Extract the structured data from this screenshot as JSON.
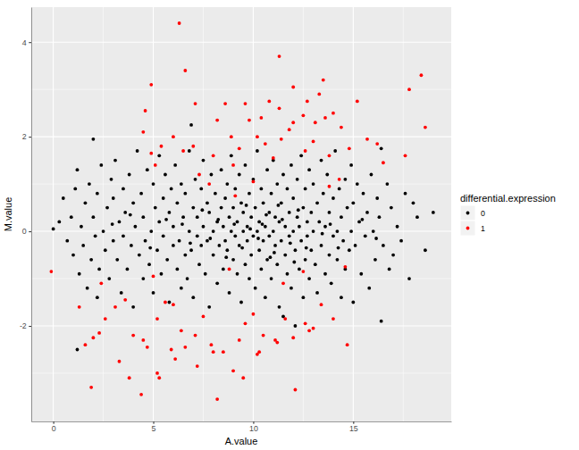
{
  "chart_data": {
    "type": "scatter",
    "x_label": "A.value",
    "y_label": "M.value",
    "legend_title": "differential.expression",
    "legend": "right",
    "grid": true,
    "marker": "circle",
    "xlim": [
      -1.1,
      19.9
    ],
    "ylim": [
      -4.02,
      4.74
    ],
    "xticks": [
      0,
      5,
      10,
      15
    ],
    "yticks": [
      -2,
      0,
      2,
      4
    ],
    "series": [
      {
        "name": "0",
        "color": "#000000",
        "x": [
          0.0,
          0.3,
          0.5,
          0.7,
          0.9,
          1.0,
          1.1,
          1.2,
          1.2,
          1.3,
          1.4,
          1.5,
          1.6,
          1.7,
          1.8,
          1.9,
          2.0,
          2.0,
          2.1,
          2.2,
          2.2,
          2.3,
          2.4,
          2.5,
          2.6,
          2.7,
          2.8,
          2.9,
          3.0,
          3.0,
          3.1,
          3.2,
          3.3,
          3.4,
          3.5,
          3.5,
          3.6,
          3.7,
          3.8,
          3.9,
          4.0,
          4.0,
          4.1,
          4.2,
          4.3,
          4.4,
          4.5,
          4.5,
          4.6,
          4.7,
          4.8,
          4.9,
          5.0,
          5.0,
          5.1,
          5.2,
          5.3,
          5.3,
          5.4,
          5.5,
          5.5,
          5.6,
          5.7,
          5.8,
          5.8,
          5.9,
          6.0,
          6.0,
          6.1,
          6.2,
          6.2,
          6.3,
          6.4,
          6.4,
          6.5,
          6.6,
          6.6,
          6.7,
          6.8,
          6.8,
          6.9,
          6.9,
          7.0,
          7.0,
          7.1,
          7.2,
          7.2,
          7.3,
          7.4,
          7.4,
          7.5,
          7.5,
          7.6,
          7.7,
          7.7,
          7.8,
          7.8,
          7.9,
          8.0,
          8.0,
          8.1,
          8.2,
          8.2,
          8.3,
          8.4,
          8.4,
          8.5,
          8.5,
          8.6,
          8.6,
          8.7,
          8.7,
          8.8,
          8.8,
          8.9,
          8.9,
          9.0,
          9.0,
          9.1,
          9.1,
          9.2,
          9.2,
          9.3,
          9.3,
          9.4,
          9.4,
          9.5,
          9.5,
          9.6,
          9.6,
          9.7,
          9.7,
          9.8,
          9.8,
          9.9,
          9.9,
          10.0,
          10.0,
          10.1,
          10.1,
          10.2,
          10.2,
          10.3,
          10.3,
          10.4,
          10.4,
          10.5,
          10.5,
          10.6,
          10.6,
          10.7,
          10.7,
          10.8,
          10.8,
          10.9,
          10.9,
          11.0,
          11.0,
          11.1,
          11.1,
          11.2,
          11.2,
          11.3,
          11.3,
          11.4,
          11.4,
          11.5,
          11.5,
          11.6,
          11.6,
          11.7,
          11.7,
          11.8,
          11.8,
          11.9,
          11.9,
          12.0,
          12.0,
          12.1,
          12.1,
          12.2,
          12.2,
          12.3,
          12.3,
          12.4,
          12.4,
          12.5,
          12.5,
          12.6,
          12.6,
          12.7,
          12.7,
          12.8,
          12.8,
          12.9,
          12.9,
          13.0,
          13.0,
          13.1,
          13.2,
          13.2,
          13.3,
          13.4,
          13.4,
          13.5,
          13.6,
          13.6,
          13.7,
          13.8,
          13.8,
          13.9,
          14.0,
          14.0,
          14.1,
          14.2,
          14.2,
          14.3,
          14.4,
          14.4,
          14.5,
          14.6,
          14.6,
          14.7,
          14.8,
          14.9,
          14.9,
          15.0,
          15.0,
          15.1,
          15.2,
          15.3,
          15.4,
          15.5,
          15.6,
          15.7,
          15.8,
          15.9,
          16.0,
          16.1,
          16.2,
          16.3,
          16.4,
          16.4,
          16.5,
          16.7,
          16.8,
          16.9,
          17.0,
          17.2,
          17.4,
          17.6,
          17.8,
          18.2,
          18.6,
          19.0,
          18.0,
          9.05,
          9.45,
          9.85,
          10.25,
          10.65,
          11.05,
          11.45,
          11.85,
          12.25,
          8.25,
          7.85,
          7.45,
          6.85,
          6.45,
          5.65,
          4.85,
          13.45,
          13.85,
          14.25,
          10.45,
          9.65,
          10.85,
          11.25,
          8.65,
          12.65,
          3.85,
          2.95,
          15.45,
          16.15,
          12.05
        ],
        "values": [
          0.05,
          0.2,
          0.7,
          -0.2,
          0.3,
          -0.5,
          0.9,
          1.3,
          -2.5,
          -0.9,
          0.1,
          -0.3,
          0.6,
          -1.2,
          1.0,
          -0.6,
          1.95,
          0.3,
          -0.1,
          -1.4,
          0.8,
          -0.8,
          1.4,
          0.0,
          -0.4,
          0.5,
          -1.0,
          1.1,
          -0.2,
          0.7,
          1.5,
          -0.6,
          0.2,
          -1.3,
          0.9,
          -0.1,
          0.4,
          -0.8,
          1.2,
          -0.3,
          0.6,
          -1.6,
          0.1,
          1.7,
          -0.5,
          0.8,
          -1.0,
          0.3,
          -0.2,
          1.3,
          -0.7,
          0.0,
          1.0,
          -1.3,
          0.5,
          -0.4,
          1.6,
          0.2,
          -0.9,
          0.7,
          -0.1,
          1.2,
          -0.6,
          0.4,
          -1.5,
          0.9,
          -0.3,
          0.1,
          1.4,
          -0.8,
          0.6,
          -0.2,
          1.0,
          -1.2,
          0.3,
          -0.5,
          0.8,
          -1.0,
          0.0,
          1.7,
          2.25,
          -0.4,
          0.5,
          -1.4,
          1.1,
          -0.1,
          0.3,
          -0.7,
          0.9,
          -0.3,
          1.5,
          0.1,
          -0.9,
          0.6,
          -0.2,
          -1.6,
          0.4,
          1.2,
          -0.5,
          0.0,
          0.8,
          -1.1,
          0.2,
          -0.3,
          1.3,
          0.5,
          -0.8,
          0.1,
          -0.2,
          0.7,
          1.0,
          -0.4,
          0.3,
          -1.3,
          0.0,
          1.6,
          -0.6,
          0.5,
          -0.1,
          0.9,
          -0.9,
          0.2,
          1.2,
          -0.3,
          0.6,
          -1.5,
          0.0,
          0.4,
          -0.7,
          1.4,
          0.1,
          -0.2,
          0.8,
          -1.0,
          0.3,
          -0.5,
          1.1,
          -0.1,
          0.5,
          -1.2,
          0.0,
          1.7,
          -0.4,
          0.2,
          0.9,
          -0.8,
          -0.2,
          0.6,
          -1.4,
          0.1,
          1.3,
          -0.6,
          0.4,
          -0.1,
          0.8,
          -1.0,
          0.0,
          1.5,
          -0.3,
          0.3,
          -0.7,
          1.0,
          0.2,
          -1.6,
          -0.2,
          0.6,
          -1.8,
          1.2,
          -0.5,
          0.1,
          0.9,
          -0.9,
          -0.1,
          0.4,
          1.4,
          -1.2,
          0.0,
          0.7,
          -2.0,
          -0.4,
          0.3,
          1.1,
          -0.8,
          0.1,
          -0.2,
          1.6,
          0.5,
          -1.4,
          -0.6,
          0.9,
          0.2,
          -0.1,
          1.3,
          -1.0,
          0.4,
          -0.4,
          0.0,
          1.0,
          -0.7,
          0.6,
          -1.3,
          0.2,
          1.5,
          -0.3,
          0.8,
          -0.9,
          0.1,
          1.2,
          -0.5,
          0.4,
          -1.1,
          0.7,
          -0.1,
          1.7,
          0.0,
          -0.6,
          0.9,
          -1.4,
          0.3,
          -0.2,
          1.1,
          -0.8,
          0.5,
          -0.4,
          1.4,
          0.0,
          -1.5,
          0.6,
          -0.3,
          1.0,
          0.2,
          -0.9,
          0.8,
          -0.1,
          0.4,
          -1.2,
          1.2,
          0.0,
          -0.6,
          0.7,
          0.3,
          1.75,
          -1.9,
          -0.3,
          1.0,
          -0.8,
          0.5,
          -0.5,
          0.1,
          -0.2,
          0.8,
          -1.0,
          0.3,
          -0.4,
          0.4,
          0.6,
          0.15,
          -0.35,
          0.05,
          -0.15,
          0.35,
          -0.45,
          0.25,
          -0.25,
          0.45,
          0.25,
          -0.15,
          0.45,
          -0.25,
          0.15,
          0.25,
          -0.35,
          -0.05,
          0.15,
          -0.35,
          0.15,
          0.55,
          -0.55,
          0.55,
          -0.55,
          -0.35,
          0.35,
          0.15,
          0.25,
          -0.15,
          -0.65
        ]
      },
      {
        "name": "1",
        "color": "#FF0000",
        "x": [
          6.3,
          11.3,
          6.6,
          4.9,
          18.4,
          13.5,
          17.8,
          12.0,
          13.3,
          7.1,
          8.6,
          10.8,
          9.6,
          12.7,
          15.2,
          4.6,
          14.0,
          12.5,
          18.6,
          11.3,
          10.4,
          9.8,
          8.2,
          13.1,
          12.0,
          13.6,
          4.5,
          11.8,
          14.4,
          15.7,
          6.0,
          8.9,
          10.2,
          11.4,
          13.0,
          16.2,
          5.4,
          7.0,
          9.3,
          14.8,
          4.9,
          8.0,
          17.6,
          12.6,
          10.6,
          6.5,
          11.0,
          13.8,
          5.1,
          16.5,
          9.0,
          7.8,
          10.0,
          13.8,
          9.1,
          14.3,
          7.3,
          -0.1,
          5.0,
          8.8,
          12.5,
          14.6,
          2.4,
          11.5,
          1.3,
          2.6,
          2.0,
          3.1,
          3.6,
          2.3,
          4.0,
          4.5,
          5.2,
          5.6,
          6.0,
          6.4,
          7.1,
          6.6,
          7.5,
          7.9,
          8.5,
          9.3,
          9.6,
          10.0,
          10.5,
          11.2,
          11.6,
          12.0,
          12.6,
          13.0,
          13.4,
          14.0,
          14.7,
          3.3,
          1.9,
          3.8,
          4.4,
          5.2,
          5.3,
          6.1,
          7.2,
          8.2,
          9.0,
          9.5,
          10.3,
          12.1,
          10.2,
          5.9,
          8.0,
          11.1,
          4.7,
          1.6,
          12.8
        ],
        "values": [
          4.4,
          3.7,
          3.4,
          3.1,
          3.3,
          3.2,
          3.0,
          3.05,
          2.9,
          2.7,
          2.7,
          2.75,
          2.7,
          2.75,
          2.75,
          2.55,
          2.5,
          2.45,
          2.2,
          2.6,
          2.4,
          2.35,
          2.35,
          2.3,
          2.3,
          2.4,
          2.1,
          2.15,
          2.2,
          1.95,
          2.0,
          2.0,
          2.0,
          1.95,
          1.9,
          1.85,
          1.8,
          1.8,
          1.75,
          1.75,
          1.65,
          1.6,
          1.6,
          1.7,
          1.85,
          1.7,
          1.55,
          1.6,
          1.4,
          1.45,
          1.4,
          1.0,
          1.05,
          0.95,
          0.75,
          1.1,
          1.2,
          -0.85,
          -0.95,
          -0.8,
          -0.85,
          -0.75,
          -1.1,
          -1.1,
          -1.6,
          -1.85,
          -2.25,
          -1.6,
          -1.45,
          -2.15,
          -2.2,
          -2.3,
          -1.85,
          -1.5,
          -1.55,
          -2.1,
          -2.2,
          -2.45,
          -1.8,
          -2.4,
          -2.55,
          -2.3,
          -1.95,
          -1.75,
          -2.2,
          -2.35,
          -1.85,
          -2.25,
          -1.95,
          -2.05,
          -1.55,
          -1.85,
          -2.4,
          -2.75,
          -3.3,
          -3.1,
          -3.45,
          -3.0,
          -3.1,
          -2.7,
          -2.85,
          -3.55,
          -2.95,
          -3.1,
          -2.55,
          -3.35,
          -2.6,
          -2.5,
          -2.55,
          -2.3,
          -2.45,
          -2.4,
          -2.1
        ]
      }
    ]
  }
}
